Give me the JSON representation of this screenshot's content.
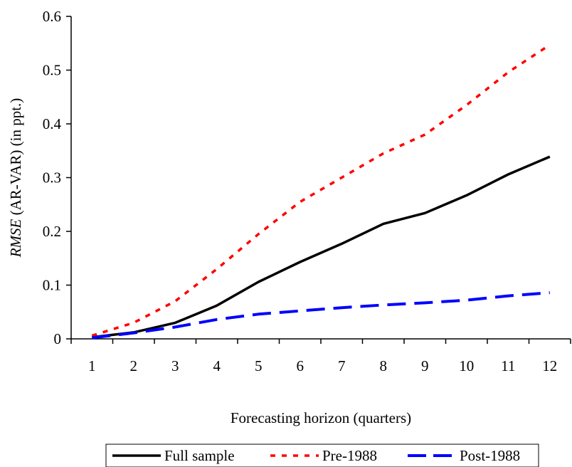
{
  "chart_data": {
    "type": "line",
    "title": "",
    "xlabel": "Forecasting horizon (quarters)",
    "ylabel": {
      "italic_part": "RMSE",
      "regular_part": " (AR-VAR) (in ppt.)"
    },
    "x": [
      1,
      2,
      3,
      4,
      5,
      6,
      7,
      8,
      9,
      10,
      11,
      12
    ],
    "xticks": [
      "1",
      "2",
      "3",
      "4",
      "5",
      "6",
      "7",
      "8",
      "9",
      "10",
      "11",
      "12"
    ],
    "ylim": [
      0,
      0.6
    ],
    "yticks": [
      "0",
      "0.1",
      "0.2",
      "0.3",
      "0.4",
      "0.5",
      "0.6"
    ],
    "grid": false,
    "legend_position": "bottom",
    "series": [
      {
        "name": "Full sample",
        "color": "#000000",
        "style": "solid",
        "values": [
          0.003,
          0.012,
          0.03,
          0.062,
          0.106,
          0.143,
          0.177,
          0.214,
          0.234,
          0.267,
          0.306,
          0.339
        ]
      },
      {
        "name": "Pre-1988",
        "color": "#ff0000",
        "style": "dotted",
        "values": [
          0.006,
          0.03,
          0.07,
          0.13,
          0.195,
          0.255,
          0.3,
          0.345,
          0.38,
          0.435,
          0.496,
          0.547
        ]
      },
      {
        "name": "Post-1988",
        "color": "#0000ff",
        "style": "dashed",
        "values": [
          0.002,
          0.011,
          0.022,
          0.036,
          0.046,
          0.052,
          0.058,
          0.063,
          0.067,
          0.072,
          0.08,
          0.086
        ]
      }
    ]
  }
}
